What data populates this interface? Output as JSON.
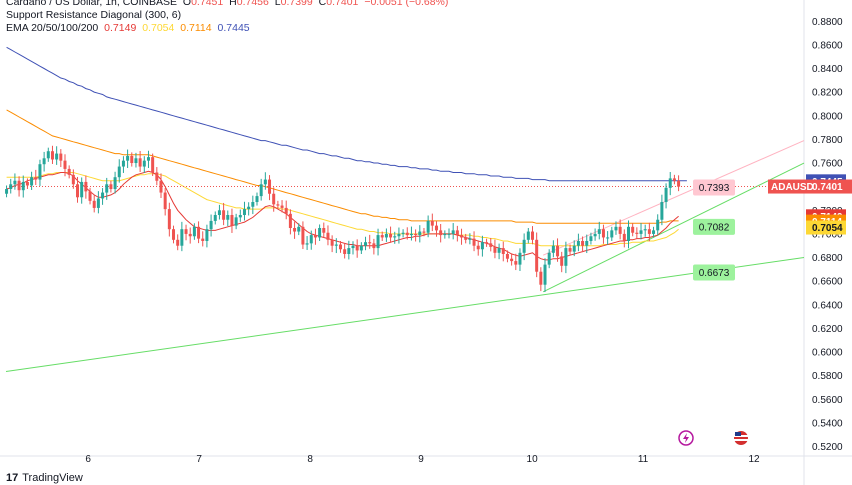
{
  "legend": {
    "symbol_line": "Cardano / US Dollar, 1h, COINBASE",
    "o_label": "O",
    "o_val": "0.7451",
    "h_label": "H",
    "h_val": "0.7456",
    "l_label": "L",
    "l_val": "0.7399",
    "c_label": "C",
    "c_val": "0.7401",
    "change": "−0.0051 (−0.68%)",
    "indicator": "Support Resistance Diagonal (300, 6)",
    "ema_label": "EMA 20/50/100/200",
    "ema_vals": [
      "0.7149",
      "0.7054",
      "0.7114",
      "0.7445"
    ]
  },
  "colors": {
    "up": "#26a69a",
    "down": "#ef5350",
    "ema20": "#e53935",
    "ema50": "#fdd835",
    "ema100": "#fb8c00",
    "ema200": "#3f51b5",
    "support": "#66dd66",
    "resistance": "#ffb3c1"
  },
  "chart_data": {
    "type": "candlestick",
    "symbol": "ADAUSD",
    "ylim": [
      0.512,
      0.898
    ],
    "y_ticks": [
      "0.8800",
      "0.8600",
      "0.8400",
      "0.8200",
      "0.8000",
      "0.7800",
      "0.7600",
      "0.7400",
      "0.7200",
      "0.7000",
      "0.6800",
      "0.6600",
      "0.6400",
      "0.6200",
      "0.6000",
      "0.5800",
      "0.5600",
      "0.5400",
      "0.5200"
    ],
    "x_ticks": [
      "6",
      "7",
      "8",
      "9",
      "10",
      "11",
      "12"
    ],
    "x_tick_days": [
      6,
      7,
      8,
      9,
      10,
      11,
      12
    ],
    "xlim": [
      5.26,
      12.45
    ],
    "closes": [
      0.738,
      0.742,
      0.745,
      0.737,
      0.744,
      0.741,
      0.748,
      0.746,
      0.759,
      0.764,
      0.77,
      0.763,
      0.768,
      0.762,
      0.755,
      0.75,
      0.742,
      0.731,
      0.744,
      0.736,
      0.728,
      0.722,
      0.73,
      0.735,
      0.742,
      0.738,
      0.748,
      0.757,
      0.762,
      0.766,
      0.76,
      0.764,
      0.757,
      0.762,
      0.765,
      0.752,
      0.745,
      0.735,
      0.721,
      0.704,
      0.695,
      0.69,
      0.704,
      0.7,
      0.698,
      0.706,
      0.696,
      0.694,
      0.704,
      0.711,
      0.716,
      0.72,
      0.712,
      0.716,
      0.707,
      0.714,
      0.716,
      0.721,
      0.723,
      0.727,
      0.732,
      0.742,
      0.746,
      0.734,
      0.725,
      0.724,
      0.722,
      0.717,
      0.705,
      0.702,
      0.706,
      0.691,
      0.692,
      0.699,
      0.697,
      0.705,
      0.701,
      0.695,
      0.69,
      0.691,
      0.687,
      0.683,
      0.688,
      0.69,
      0.686,
      0.69,
      0.693,
      0.692,
      0.688,
      0.699,
      0.697,
      0.7,
      0.697,
      0.698,
      0.7,
      0.701,
      0.699,
      0.7,
      0.699,
      0.702,
      0.701,
      0.711,
      0.707,
      0.703,
      0.699,
      0.7,
      0.7,
      0.703,
      0.699,
      0.697,
      0.695,
      0.696,
      0.69,
      0.687,
      0.693,
      0.692,
      0.689,
      0.684,
      0.688,
      0.683,
      0.679,
      0.677,
      0.674,
      0.684,
      0.695,
      0.702,
      0.695,
      0.668,
      0.657,
      0.674,
      0.684,
      0.69,
      0.681,
      0.673,
      0.688,
      0.685,
      0.69,
      0.694,
      0.69,
      0.694,
      0.698,
      0.7,
      0.704,
      0.697,
      0.697,
      0.703,
      0.706,
      0.7,
      0.694,
      0.706,
      0.701,
      0.7,
      0.703,
      0.704,
      0.7,
      0.703,
      0.712,
      0.727,
      0.739,
      0.747,
      0.745,
      0.74
    ],
    "ema20": [
      0.738,
      0.739,
      0.741,
      0.742,
      0.743,
      0.745,
      0.746,
      0.747,
      0.748,
      0.749,
      0.75,
      0.75,
      0.751,
      0.752,
      0.752,
      0.751,
      0.749,
      0.745,
      0.742,
      0.739,
      0.736,
      0.733,
      0.731,
      0.731,
      0.732,
      0.733,
      0.735,
      0.738,
      0.742,
      0.745,
      0.748,
      0.75,
      0.751,
      0.752,
      0.753,
      0.752,
      0.75,
      0.746,
      0.74,
      0.733,
      0.726,
      0.72,
      0.716,
      0.712,
      0.709,
      0.706,
      0.705,
      0.704,
      0.703,
      0.703,
      0.703,
      0.704,
      0.705,
      0.706,
      0.707,
      0.708,
      0.709,
      0.71,
      0.712,
      0.714,
      0.717,
      0.72,
      0.723,
      0.724,
      0.723,
      0.721,
      0.719,
      0.717,
      0.714,
      0.711,
      0.708,
      0.705,
      0.702,
      0.7,
      0.699,
      0.698,
      0.697,
      0.696,
      0.695,
      0.694,
      0.693,
      0.692,
      0.691,
      0.691,
      0.69,
      0.69,
      0.69,
      0.69,
      0.69,
      0.69,
      0.691,
      0.692,
      0.693,
      0.694,
      0.695,
      0.696,
      0.697,
      0.697,
      0.698,
      0.698,
      0.699,
      0.7,
      0.7,
      0.7,
      0.7,
      0.7,
      0.7,
      0.7,
      0.699,
      0.698,
      0.697,
      0.696,
      0.695,
      0.694,
      0.693,
      0.692,
      0.691,
      0.689,
      0.688,
      0.687,
      0.685,
      0.683,
      0.682,
      0.681,
      0.682,
      0.683,
      0.684,
      0.681,
      0.679,
      0.678,
      0.678,
      0.679,
      0.679,
      0.68,
      0.681,
      0.682,
      0.683,
      0.684,
      0.685,
      0.686,
      0.687,
      0.688,
      0.689,
      0.69,
      0.691,
      0.692,
      0.693,
      0.694,
      0.694,
      0.695,
      0.695,
      0.696,
      0.696,
      0.697,
      0.697,
      0.698,
      0.699,
      0.702,
      0.705,
      0.709,
      0.712,
      0.715
    ],
    "ema50": [
      0.748,
      0.748,
      0.748,
      0.748,
      0.748,
      0.748,
      0.748,
      0.748,
      0.749,
      0.75,
      0.751,
      0.751,
      0.752,
      0.752,
      0.752,
      0.752,
      0.752,
      0.751,
      0.75,
      0.749,
      0.748,
      0.747,
      0.746,
      0.745,
      0.745,
      0.745,
      0.745,
      0.745,
      0.746,
      0.747,
      0.748,
      0.749,
      0.75,
      0.75,
      0.751,
      0.751,
      0.751,
      0.75,
      0.749,
      0.747,
      0.745,
      0.743,
      0.741,
      0.739,
      0.737,
      0.735,
      0.733,
      0.731,
      0.729,
      0.728,
      0.727,
      0.726,
      0.725,
      0.724,
      0.723,
      0.722,
      0.722,
      0.721,
      0.721,
      0.721,
      0.721,
      0.721,
      0.722,
      0.722,
      0.722,
      0.722,
      0.721,
      0.721,
      0.72,
      0.719,
      0.718,
      0.717,
      0.716,
      0.715,
      0.714,
      0.713,
      0.712,
      0.711,
      0.71,
      0.709,
      0.708,
      0.707,
      0.706,
      0.705,
      0.704,
      0.704,
      0.703,
      0.702,
      0.702,
      0.701,
      0.701,
      0.701,
      0.7,
      0.7,
      0.7,
      0.7,
      0.7,
      0.7,
      0.7,
      0.7,
      0.7,
      0.7,
      0.7,
      0.7,
      0.7,
      0.7,
      0.7,
      0.7,
      0.699,
      0.699,
      0.699,
      0.699,
      0.698,
      0.698,
      0.697,
      0.697,
      0.696,
      0.696,
      0.695,
      0.694,
      0.694,
      0.693,
      0.692,
      0.692,
      0.692,
      0.692,
      0.692,
      0.691,
      0.69,
      0.69,
      0.69,
      0.69,
      0.69,
      0.69,
      0.69,
      0.69,
      0.69,
      0.69,
      0.69,
      0.69,
      0.69,
      0.69,
      0.69,
      0.691,
      0.691,
      0.691,
      0.691,
      0.692,
      0.692,
      0.692,
      0.693,
      0.693,
      0.693,
      0.694,
      0.694,
      0.694,
      0.695,
      0.696,
      0.697,
      0.699,
      0.701,
      0.704
    ],
    "ema100": [
      0.805,
      0.803,
      0.801,
      0.799,
      0.797,
      0.795,
      0.793,
      0.791,
      0.789,
      0.787,
      0.785,
      0.783,
      0.782,
      0.781,
      0.78,
      0.779,
      0.778,
      0.777,
      0.776,
      0.775,
      0.774,
      0.773,
      0.772,
      0.771,
      0.77,
      0.769,
      0.768,
      0.768,
      0.767,
      0.767,
      0.767,
      0.767,
      0.767,
      0.767,
      0.767,
      0.766,
      0.765,
      0.764,
      0.763,
      0.762,
      0.761,
      0.76,
      0.759,
      0.758,
      0.757,
      0.756,
      0.755,
      0.754,
      0.753,
      0.752,
      0.751,
      0.75,
      0.749,
      0.748,
      0.747,
      0.746,
      0.745,
      0.744,
      0.743,
      0.742,
      0.741,
      0.741,
      0.74,
      0.739,
      0.738,
      0.737,
      0.736,
      0.735,
      0.734,
      0.733,
      0.732,
      0.731,
      0.73,
      0.729,
      0.728,
      0.727,
      0.726,
      0.725,
      0.724,
      0.723,
      0.722,
      0.721,
      0.72,
      0.719,
      0.718,
      0.717,
      0.717,
      0.716,
      0.715,
      0.715,
      0.714,
      0.714,
      0.713,
      0.713,
      0.712,
      0.712,
      0.712,
      0.711,
      0.711,
      0.711,
      0.711,
      0.711,
      0.711,
      0.711,
      0.711,
      0.711,
      0.711,
      0.711,
      0.711,
      0.711,
      0.711,
      0.711,
      0.711,
      0.711,
      0.711,
      0.711,
      0.711,
      0.711,
      0.711,
      0.711,
      0.711,
      0.711,
      0.71,
      0.71,
      0.71,
      0.71,
      0.71,
      0.709,
      0.709,
      0.709,
      0.709,
      0.709,
      0.709,
      0.709,
      0.709,
      0.709,
      0.709,
      0.709,
      0.709,
      0.709,
      0.709,
      0.709,
      0.709,
      0.709,
      0.709,
      0.709,
      0.709,
      0.709,
      0.709,
      0.709,
      0.709,
      0.709,
      0.709,
      0.709,
      0.709,
      0.709,
      0.709,
      0.71,
      0.71,
      0.711,
      0.711,
      0.711
    ],
    "ema200": [
      0.858,
      0.856,
      0.854,
      0.852,
      0.85,
      0.848,
      0.846,
      0.844,
      0.842,
      0.84,
      0.838,
      0.836,
      0.834,
      0.832,
      0.831,
      0.829,
      0.828,
      0.826,
      0.825,
      0.823,
      0.822,
      0.82,
      0.819,
      0.818,
      0.816,
      0.815,
      0.814,
      0.813,
      0.812,
      0.811,
      0.81,
      0.809,
      0.808,
      0.807,
      0.806,
      0.805,
      0.804,
      0.803,
      0.802,
      0.801,
      0.8,
      0.799,
      0.798,
      0.797,
      0.796,
      0.795,
      0.794,
      0.793,
      0.792,
      0.791,
      0.79,
      0.789,
      0.788,
      0.787,
      0.786,
      0.785,
      0.784,
      0.783,
      0.782,
      0.781,
      0.78,
      0.779,
      0.779,
      0.778,
      0.777,
      0.776,
      0.775,
      0.775,
      0.774,
      0.773,
      0.772,
      0.771,
      0.771,
      0.77,
      0.769,
      0.768,
      0.768,
      0.767,
      0.766,
      0.766,
      0.765,
      0.764,
      0.764,
      0.763,
      0.762,
      0.762,
      0.761,
      0.761,
      0.76,
      0.76,
      0.759,
      0.759,
      0.758,
      0.758,
      0.757,
      0.757,
      0.757,
      0.756,
      0.756,
      0.755,
      0.755,
      0.755,
      0.754,
      0.754,
      0.753,
      0.753,
      0.753,
      0.752,
      0.752,
      0.752,
      0.751,
      0.751,
      0.751,
      0.75,
      0.75,
      0.75,
      0.749,
      0.749,
      0.749,
      0.748,
      0.748,
      0.748,
      0.747,
      0.747,
      0.747,
      0.747,
      0.746,
      0.746,
      0.746,
      0.746,
      0.745,
      0.745,
      0.745,
      0.745,
      0.745,
      0.745,
      0.745,
      0.745,
      0.745,
      0.745,
      0.745,
      0.745,
      0.745,
      0.745,
      0.745,
      0.745,
      0.745,
      0.745,
      0.745,
      0.745,
      0.745,
      0.745,
      0.745,
      0.745,
      0.745,
      0.745,
      0.745,
      0.745,
      0.745,
      0.745,
      0.745,
      0.745,
      0.745,
      0.745
    ],
    "support_lines": [
      {
        "from": [
          5.26,
          0.5835
        ],
        "to": [
          12.45,
          0.68
        ]
      },
      {
        "from": [
          10.1,
          0.651
        ],
        "to": [
          12.45,
          0.76
        ]
      }
    ],
    "resistance_line": {
      "from": [
        10.1,
        0.682
      ],
      "to": [
        12.45,
        0.779
      ]
    },
    "current_price_line": 0.7401,
    "level_labels": [
      {
        "text": "0.7393",
        "price": 0.7393,
        "x": 11.45,
        "kind": "resistance"
      },
      {
        "text": "0.7082",
        "price": 0.706,
        "x": 11.45,
        "kind": "support"
      },
      {
        "text": "0.6673",
        "price": 0.6673,
        "x": 11.45,
        "kind": "support"
      }
    ],
    "price_badges": [
      {
        "text": "0.7445",
        "price": 0.7445,
        "color": "#3f51b5",
        "fg": "#ffffff"
      },
      {
        "text": "ADAUSD",
        "price": 0.7401,
        "color": "#ef5350",
        "fg": "#ffffff",
        "wide": true,
        "value": "0.7401"
      },
      {
        "text": "0.7149",
        "price": 0.7149,
        "color": "#e53935",
        "fg": "#ffffff"
      },
      {
        "text": "0.7114",
        "price": 0.7104,
        "color": "#fb8c00",
        "fg": "#ffffff"
      },
      {
        "text": "0.7054",
        "price": 0.7054,
        "color": "#fdd835",
        "fg": "#131722"
      }
    ]
  },
  "footer": {
    "brand": "TradingView",
    "logo": "17"
  }
}
